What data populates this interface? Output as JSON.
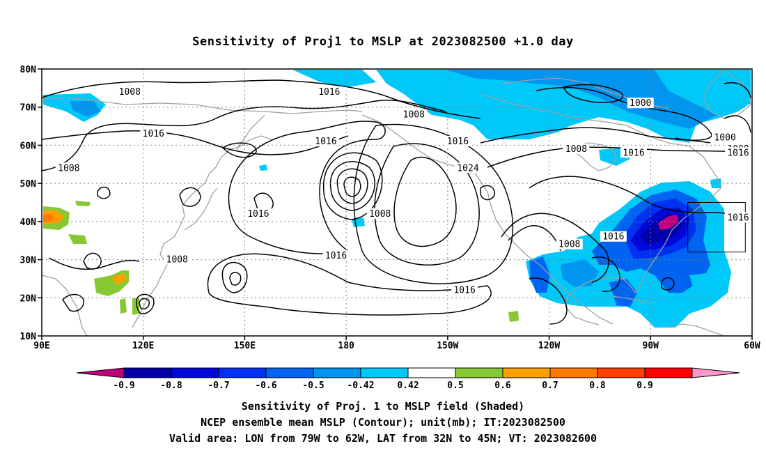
{
  "title": "Sensitivity of Proj1 to MSLP at 2023082500 +1.0 day",
  "map": {
    "lon_range": [
      90,
      300
    ],
    "lat_range": [
      10,
      80
    ],
    "lat_ticks": [
      {
        "value": 80,
        "label": "80N"
      },
      {
        "value": 70,
        "label": "70N"
      },
      {
        "value": 60,
        "label": "60N"
      },
      {
        "value": 50,
        "label": "50N"
      },
      {
        "value": 40,
        "label": "40N"
      },
      {
        "value": 30,
        "label": "30N"
      },
      {
        "value": 20,
        "label": "20N"
      },
      {
        "value": 10,
        "label": "10N"
      }
    ],
    "lon_ticks": [
      {
        "value": 90,
        "label": "90E"
      },
      {
        "value": 120,
        "label": "120E"
      },
      {
        "value": 150,
        "label": "150E"
      },
      {
        "value": 180,
        "label": "180"
      },
      {
        "value": 210,
        "label": "150W"
      },
      {
        "value": 240,
        "label": "120W"
      },
      {
        "value": 270,
        "label": "90W"
      },
      {
        "value": 300,
        "label": "60W"
      }
    ],
    "valid_box": {
      "lon": [
        281,
        298
      ],
      "lat": [
        32,
        45
      ]
    },
    "contour_labels": [
      {
        "text": "1008",
        "lon": 116,
        "lat": 74
      },
      {
        "text": "1016",
        "lon": 175,
        "lat": 74
      },
      {
        "text": "1008",
        "lon": 200,
        "lat": 68
      },
      {
        "text": "1000",
        "lon": 267,
        "lat": 71
      },
      {
        "text": "1016",
        "lon": 123,
        "lat": 63
      },
      {
        "text": "1016",
        "lon": 174,
        "lat": 61
      },
      {
        "text": "1016",
        "lon": 213,
        "lat": 61
      },
      {
        "text": "1008",
        "lon": 248,
        "lat": 59
      },
      {
        "text": "1016",
        "lon": 265,
        "lat": 58
      },
      {
        "text": "1000",
        "lon": 292,
        "lat": 62
      },
      {
        "text": "1008",
        "lon": 296,
        "lat": 59
      },
      {
        "text": "1016",
        "lon": 301,
        "lat": 58
      },
      {
        "text": "1008",
        "lon": 98,
        "lat": 54
      },
      {
        "text": "1024",
        "lon": 216,
        "lat": 54
      },
      {
        "text": "1008",
        "lon": 190,
        "lat": 42
      },
      {
        "text": "1016",
        "lon": 154,
        "lat": 42
      },
      {
        "text": "1016",
        "lon": 259,
        "lat": 36
      },
      {
        "text": "1008",
        "lon": 246,
        "lat": 34
      },
      {
        "text": "1016",
        "lon": 301,
        "lat": 41
      },
      {
        "text": "1008",
        "lon": 130,
        "lat": 30
      },
      {
        "text": "1016",
        "lon": 177,
        "lat": 31
      },
      {
        "text": "1016",
        "lon": 215,
        "lat": 22
      }
    ]
  },
  "colorbar": {
    "labels": [
      "-0.9",
      "-0.8",
      "-0.7",
      "-0.6",
      "-0.5",
      "-0.42",
      "0.42",
      "0.5",
      "0.6",
      "0.7",
      "0.8",
      "0.9"
    ],
    "colors": {
      "neg_extreme": "#c0007c",
      "bins": [
        "#0000a8",
        "#0008d8",
        "#0030f0",
        "#0064f0",
        "#0096f0",
        "#00c8f8",
        "#ffffff",
        "#88c832",
        "#ffa000",
        "#ff7800",
        "#ff4000",
        "#ff0000"
      ],
      "pos_extreme": "#ff99cc"
    }
  },
  "caption": {
    "line1": "Sensitivity of Proj. 1 to MSLP field (Shaded)",
    "line2": "NCEP ensemble mean MSLP (Contour); unit(mb); IT:2023082500",
    "line3": "Valid area: LON from 79W to 62W, LAT from 32N to 45N; VT: 2023082600"
  }
}
